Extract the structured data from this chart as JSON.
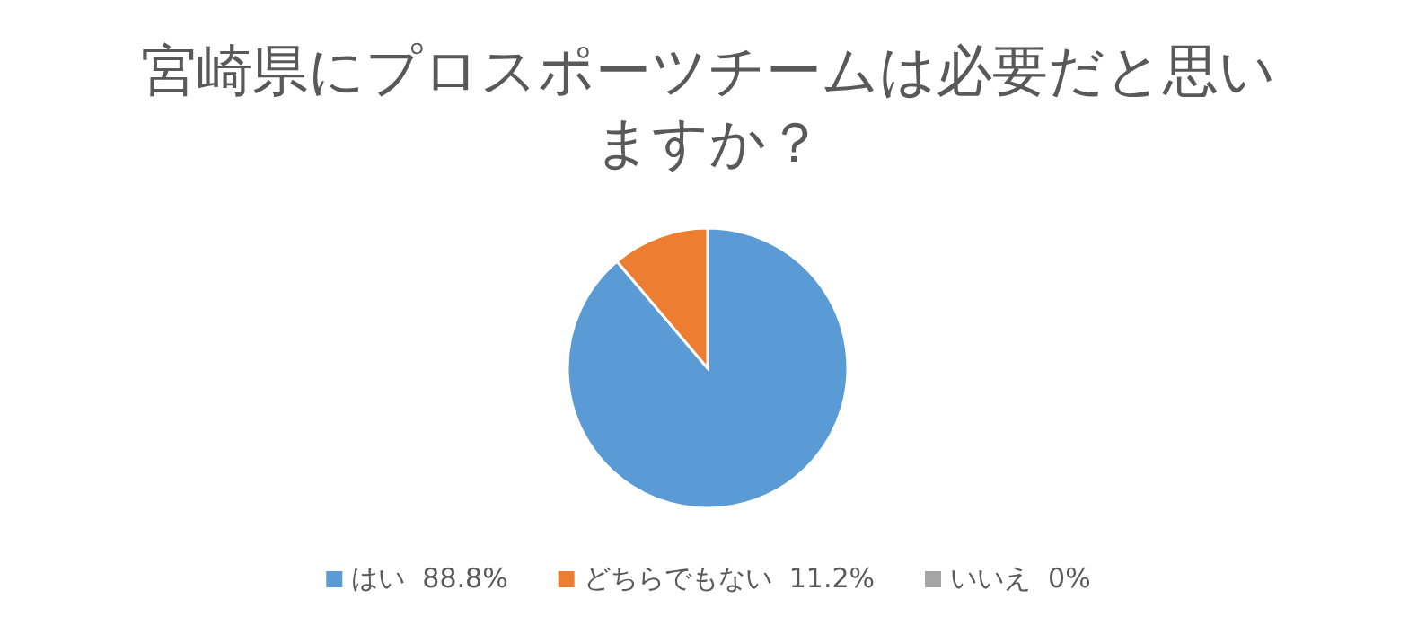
{
  "chart_data": {
    "type": "pie",
    "title": "宮崎県にプロスポーツチームは必要だと思いますか？",
    "categories": [
      "はい",
      "どちらでもない",
      "いいえ"
    ],
    "values": [
      88.8,
      11.2,
      0
    ],
    "value_labels": [
      "88.8%",
      "11.2%",
      "0%"
    ],
    "colors": [
      "#5b9bd5",
      "#ed7d31",
      "#a5a5a5"
    ],
    "legend": "bottom"
  }
}
